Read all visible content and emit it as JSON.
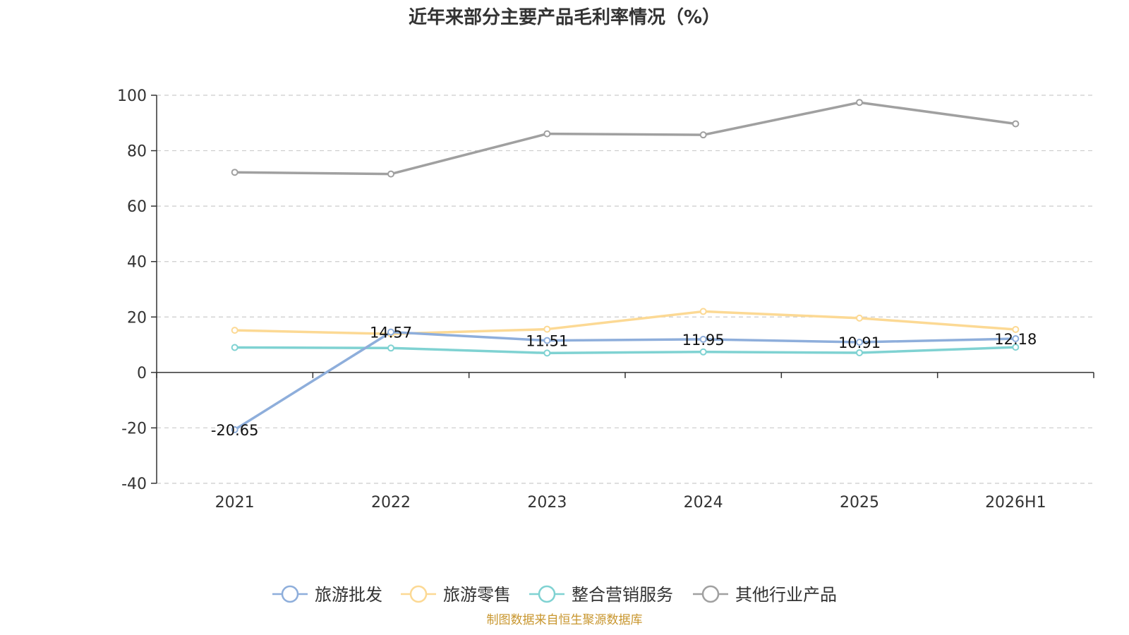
{
  "chart_data": {
    "type": "line",
    "title": "近年来部分主要产品毛利率情况（%）",
    "categories": [
      "2021",
      "2022",
      "2023",
      "2024",
      "2025",
      "2026H1"
    ],
    "ylim": [
      -40,
      100
    ],
    "yticks": [
      100,
      80,
      60,
      40,
      20,
      0,
      -20,
      -40
    ],
    "grid": true,
    "legend_position": "bottom",
    "series": [
      {
        "name": "旅游批发",
        "color": "#8eaedb",
        "values": [
          -20.65,
          14.57,
          11.51,
          11.95,
          10.91,
          12.18
        ],
        "labels": [
          "-20.65",
          "14.57",
          "11.51",
          "11.95",
          "10.91",
          "12.18"
        ]
      },
      {
        "name": "旅游零售",
        "color": "#fcd994",
        "values": [
          15.2,
          13.9,
          15.6,
          22.0,
          19.6,
          15.5
        ]
      },
      {
        "name": "整合营销服务",
        "color": "#7fd2d2",
        "values": [
          9.0,
          8.8,
          7.0,
          7.4,
          7.1,
          9.1
        ]
      },
      {
        "name": "其他行业产品",
        "color": "#a0a0a0",
        "values": [
          72.2,
          71.6,
          86.1,
          85.7,
          97.4,
          89.7
        ]
      }
    ]
  },
  "footer": {
    "source": "制图数据来自恒生聚源数据库"
  }
}
